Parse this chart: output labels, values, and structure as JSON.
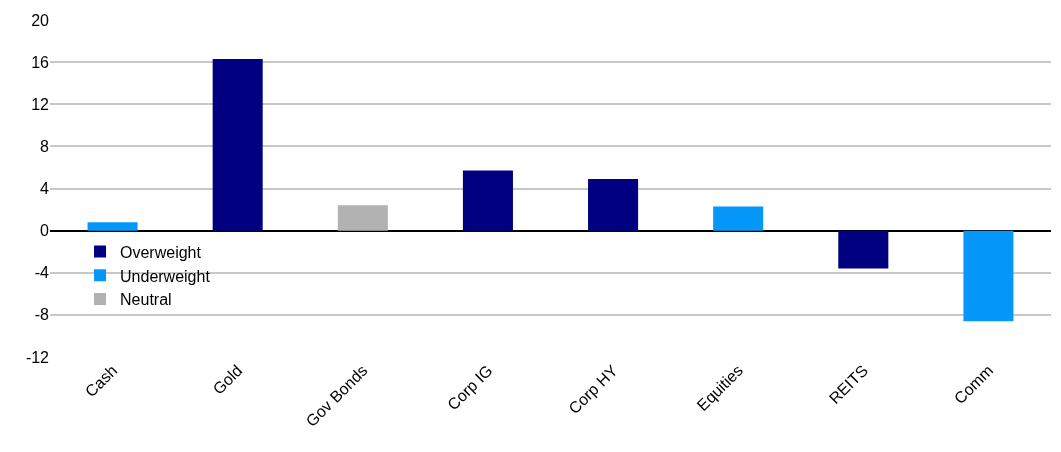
{
  "chart_data": {
    "type": "bar",
    "categories": [
      "Cash",
      "Gold",
      "Gov Bonds",
      "Corp IG",
      "Corp HY",
      "Equities",
      "REITS",
      "Comm"
    ],
    "series": [
      {
        "name": "Overweight",
        "color": "#000080",
        "values": [
          null,
          16.3,
          null,
          5.7,
          4.9,
          null,
          -3.6,
          null
        ]
      },
      {
        "name": "Underweight",
        "color": "#0598fa",
        "values": [
          0.8,
          null,
          null,
          null,
          null,
          2.3,
          null,
          -8.6
        ]
      },
      {
        "name": "Neutral",
        "color": "#b2b2b2",
        "values": [
          null,
          null,
          2.4,
          null,
          null,
          null,
          null,
          null
        ]
      }
    ],
    "ylim": [
      -12,
      20
    ],
    "yticks": [
      -12,
      -8,
      -4,
      0,
      4,
      8,
      12,
      16,
      20
    ],
    "grid": "y",
    "legend": "bottom left"
  }
}
